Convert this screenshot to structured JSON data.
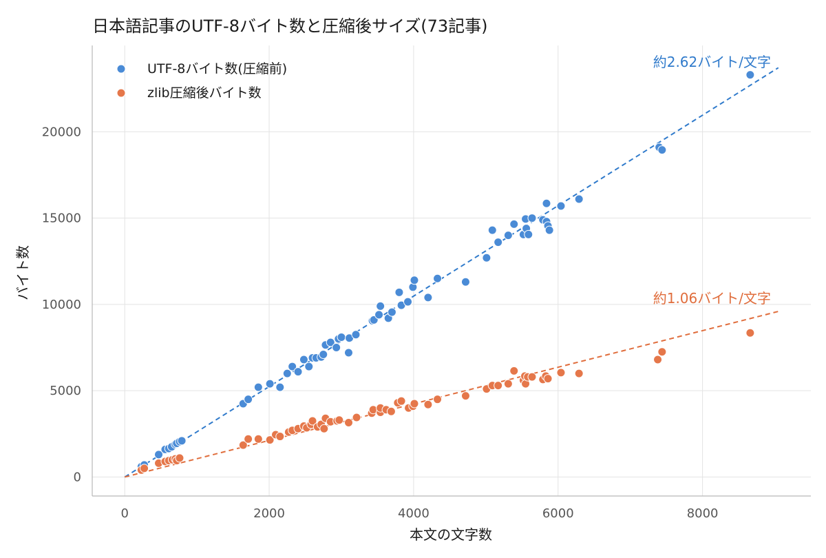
{
  "chart_data": {
    "type": "scatter",
    "title": "日本語記事のUTF-8バイト数と圧縮後サイズ(73記事)",
    "xlabel": "本文の文字数",
    "ylabel": "バイト数",
    "xlim": [
      -450,
      9500
    ],
    "ylim": [
      -1100,
      25000
    ],
    "xticks": [
      0,
      2000,
      4000,
      6000,
      8000
    ],
    "yticks": [
      0,
      5000,
      10000,
      15000,
      20000
    ],
    "xtick_labels": [
      "0",
      "2000",
      "4000",
      "6000",
      "8000"
    ],
    "ytick_labels": [
      "0",
      "5000",
      "10000",
      "15000",
      "20000"
    ],
    "grid": true,
    "legend_position": "top-left",
    "series": [
      {
        "name": "UTF-8バイト数(圧縮前)",
        "color": "#4a8bd6",
        "fit_color": "#2f7acb",
        "fit_slope": 2.62,
        "points": [
          [
            230,
            600
          ],
          [
            270,
            700
          ],
          [
            470,
            1300
          ],
          [
            560,
            1600
          ],
          [
            610,
            1650
          ],
          [
            650,
            1750
          ],
          [
            700,
            1900
          ],
          [
            720,
            1950
          ],
          [
            760,
            2050
          ],
          [
            790,
            2100
          ],
          [
            1640,
            4250
          ],
          [
            1710,
            4500
          ],
          [
            1850,
            5200
          ],
          [
            2010,
            5400
          ],
          [
            2150,
            5200
          ],
          [
            2250,
            6000
          ],
          [
            2320,
            6400
          ],
          [
            2400,
            6100
          ],
          [
            2480,
            6800
          ],
          [
            2550,
            6400
          ],
          [
            2600,
            6900
          ],
          [
            2650,
            6900
          ],
          [
            2720,
            6950
          ],
          [
            2750,
            7100
          ],
          [
            2780,
            7650
          ],
          [
            2850,
            7800
          ],
          [
            2930,
            7500
          ],
          [
            2960,
            8000
          ],
          [
            3000,
            8100
          ],
          [
            3100,
            7200
          ],
          [
            3110,
            8050
          ],
          [
            3200,
            8250
          ],
          [
            3430,
            9050
          ],
          [
            3450,
            9100
          ],
          [
            3520,
            9400
          ],
          [
            3540,
            9900
          ],
          [
            3650,
            9200
          ],
          [
            3700,
            9550
          ],
          [
            3800,
            10700
          ],
          [
            3830,
            9950
          ],
          [
            3920,
            10150
          ],
          [
            3990,
            11000
          ],
          [
            4010,
            11400
          ],
          [
            4200,
            10400
          ],
          [
            4330,
            11500
          ],
          [
            4720,
            11300
          ],
          [
            5010,
            12700
          ],
          [
            5090,
            14300
          ],
          [
            5170,
            13600
          ],
          [
            5310,
            14000
          ],
          [
            5390,
            14650
          ],
          [
            5520,
            14050
          ],
          [
            5550,
            14950
          ],
          [
            5560,
            14400
          ],
          [
            5590,
            14050
          ],
          [
            5640,
            15000
          ],
          [
            5790,
            14900
          ],
          [
            5840,
            14800
          ],
          [
            5840,
            15850
          ],
          [
            5860,
            14550
          ],
          [
            5880,
            14300
          ],
          [
            6040,
            15700
          ],
          [
            6290,
            16100
          ],
          [
            7400,
            19100
          ],
          [
            7440,
            18950
          ],
          [
            8660,
            23300
          ]
        ]
      },
      {
        "name": "zlib圧縮後バイト数",
        "color": "#e5774a",
        "fit_color": "#e06d3c",
        "fit_slope": 1.06,
        "points": [
          [
            230,
            400
          ],
          [
            270,
            500
          ],
          [
            470,
            800
          ],
          [
            560,
            900
          ],
          [
            610,
            950
          ],
          [
            660,
            1000
          ],
          [
            700,
            1050
          ],
          [
            720,
            950
          ],
          [
            760,
            1100
          ],
          [
            1640,
            1850
          ],
          [
            1710,
            2200
          ],
          [
            1850,
            2200
          ],
          [
            2010,
            2150
          ],
          [
            2090,
            2450
          ],
          [
            2150,
            2350
          ],
          [
            2270,
            2600
          ],
          [
            2320,
            2700
          ],
          [
            2400,
            2800
          ],
          [
            2480,
            2950
          ],
          [
            2520,
            2850
          ],
          [
            2580,
            3050
          ],
          [
            2600,
            3250
          ],
          [
            2670,
            2900
          ],
          [
            2720,
            3050
          ],
          [
            2760,
            2800
          ],
          [
            2780,
            3400
          ],
          [
            2850,
            3200
          ],
          [
            2940,
            3250
          ],
          [
            2970,
            3300
          ],
          [
            3100,
            3150
          ],
          [
            3210,
            3450
          ],
          [
            3420,
            3700
          ],
          [
            3440,
            3900
          ],
          [
            3540,
            3750
          ],
          [
            3540,
            4000
          ],
          [
            3620,
            3900
          ],
          [
            3690,
            3800
          ],
          [
            3780,
            4300
          ],
          [
            3830,
            4400
          ],
          [
            3930,
            4000
          ],
          [
            3990,
            4100
          ],
          [
            4010,
            4250
          ],
          [
            4200,
            4200
          ],
          [
            4330,
            4500
          ],
          [
            4720,
            4700
          ],
          [
            5010,
            5100
          ],
          [
            5090,
            5300
          ],
          [
            5170,
            5300
          ],
          [
            5310,
            5400
          ],
          [
            5390,
            6150
          ],
          [
            5520,
            5600
          ],
          [
            5540,
            5850
          ],
          [
            5550,
            5400
          ],
          [
            5580,
            5800
          ],
          [
            5640,
            5800
          ],
          [
            5790,
            5650
          ],
          [
            5830,
            5850
          ],
          [
            5860,
            5700
          ],
          [
            6040,
            6050
          ],
          [
            6290,
            6000
          ],
          [
            7380,
            6800
          ],
          [
            7440,
            7250
          ],
          [
            8660,
            8350
          ]
        ]
      }
    ],
    "annotations": [
      "約2.62バイト/文字",
      "約1.06バイト/文字"
    ]
  }
}
